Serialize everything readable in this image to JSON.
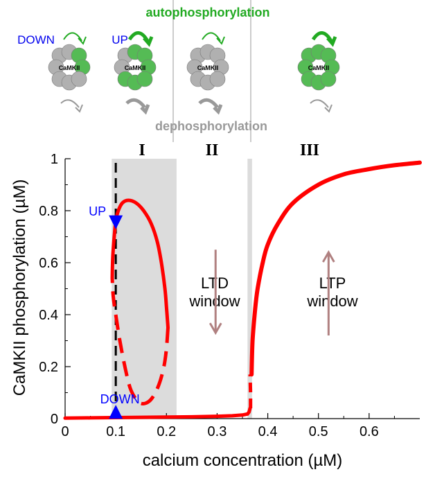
{
  "header": {
    "autophosphorylation_label": "autophosphorylation",
    "dephosphorylation_label": "dephosphorylation",
    "auto_color": "#22aa22",
    "dephos_color": "#999999",
    "states": [
      {
        "label": "DOWN",
        "text": "CaMKII",
        "kind": "down"
      },
      {
        "label": "UP",
        "text": "CaMKII",
        "kind": "up"
      },
      {
        "label": "",
        "text": "CaMKII",
        "kind": "down-mid"
      },
      {
        "label": "",
        "text": "CaMKII",
        "kind": "up-only"
      }
    ]
  },
  "chart_data": {
    "type": "line",
    "title": "",
    "xlabel": "calcium concentration (µM)",
    "ylabel": "CaMKII phosphorylation (µM)",
    "xlim": [
      0,
      0.7
    ],
    "ylim": [
      0,
      1
    ],
    "xticks": [
      0,
      0.1,
      0.2,
      0.3,
      0.4,
      0.5,
      0.6
    ],
    "xtick_labels": [
      "0",
      "0.1",
      "0.2",
      "0.3",
      "0.4",
      "0.5",
      "0.6"
    ],
    "yticks": [
      0,
      0.2,
      0.4,
      0.6,
      0.8,
      1
    ],
    "ytick_labels": [
      "0",
      "0.2",
      "0.4",
      "0.6",
      "0.8",
      "1"
    ],
    "grid": false,
    "regions": [
      {
        "label": "I",
        "x0": 0.092,
        "x1": 0.22
      },
      {
        "label": "II",
        "x0": 0.22,
        "x1": 0.36
      },
      {
        "label": "III",
        "x0": 0.36,
        "x1": 0.7
      }
    ],
    "shaded_bands": [
      {
        "x0": 0.092,
        "x1": 0.22
      },
      {
        "x0": 0.36,
        "x1": 0.369
      }
    ],
    "vline_dashed_x": 0.1,
    "curve_color": "#ff0000",
    "stable_lower": {
      "x": [
        0,
        0.05,
        0.1,
        0.15,
        0.2,
        0.25,
        0.3,
        0.33,
        0.35,
        0.36,
        0.363,
        0.365
      ],
      "y": [
        0.002,
        0.003,
        0.004,
        0.005,
        0.006,
        0.007,
        0.009,
        0.011,
        0.014,
        0.018,
        0.025,
        0.04
      ]
    },
    "unstable_branch": {
      "x": [
        0.366,
        0.366,
        0.365
      ],
      "y": [
        0.04,
        0.1,
        0.17
      ]
    },
    "stable_upper": {
      "x": [
        0.368,
        0.37,
        0.375,
        0.38,
        0.39,
        0.4,
        0.42,
        0.45,
        0.5,
        0.55,
        0.6,
        0.65,
        0.7
      ],
      "y": [
        0.17,
        0.3,
        0.42,
        0.5,
        0.6,
        0.67,
        0.75,
        0.83,
        0.9,
        0.94,
        0.96,
        0.975,
        0.985
      ]
    },
    "loop_stable": {
      "x": [
        0.093,
        0.094,
        0.097,
        0.1,
        0.105,
        0.113,
        0.125,
        0.14,
        0.155,
        0.17,
        0.182,
        0.19,
        0.197,
        0.2,
        0.202,
        0.203
      ],
      "y": [
        0.54,
        0.62,
        0.7,
        0.76,
        0.8,
        0.83,
        0.84,
        0.83,
        0.8,
        0.75,
        0.68,
        0.6,
        0.5,
        0.43,
        0.38,
        0.35
      ]
    },
    "loop_unstable": {
      "x": [
        0.203,
        0.2,
        0.195,
        0.185,
        0.172,
        0.16,
        0.148,
        0.138,
        0.128,
        0.118,
        0.108,
        0.1,
        0.095,
        0.093
      ],
      "y": [
        0.35,
        0.27,
        0.2,
        0.13,
        0.08,
        0.06,
        0.06,
        0.08,
        0.12,
        0.2,
        0.3,
        0.4,
        0.47,
        0.54
      ]
    },
    "markers": [
      {
        "label": "UP",
        "x": 0.1,
        "y": 0.75,
        "shape": "triangle-down"
      },
      {
        "label": "DOWN",
        "x": 0.1,
        "y": 0.005,
        "shape": "triangle-up"
      }
    ],
    "marker_color": "#0000ff",
    "annotations": [
      {
        "text_lines": [
          "LTD",
          "window"
        ],
        "arrow": "down",
        "x": 0.297,
        "y_from": 0.65,
        "y_to": 0.33
      },
      {
        "text_lines": [
          "LTP",
          "window"
        ],
        "arrow": "up",
        "x": 0.52,
        "y_from": 0.32,
        "y_to": 0.64
      }
    ],
    "arrow_color": "#b08080"
  }
}
